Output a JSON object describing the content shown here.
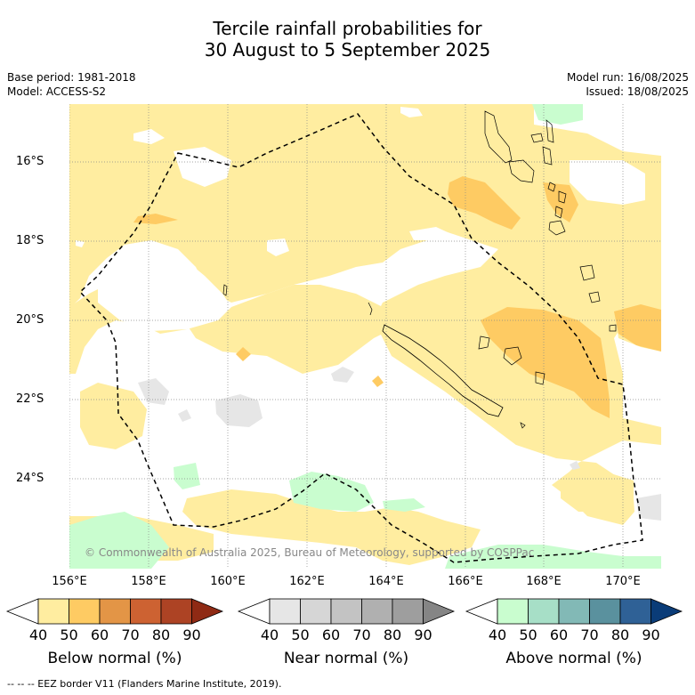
{
  "title_line1": "Tercile rainfall probabilities for",
  "title_line2": "30 August to 5 September 2025",
  "base_period": "Base period: 1981-2018",
  "model": "Model: ACCESS-S2",
  "model_run": "Model run: 16/08/2025",
  "issued": "Issued: 18/08/2025",
  "copyright": "© Commonwealth of Australia 2025, Bureau of Meteorology, supported by COSPPac",
  "footnote": "--  --  -- EEZ border V11 (Flanders Marine Institute, 2019).",
  "lat_labels": [
    "16°S",
    "18°S",
    "20°S",
    "22°S",
    "24°S"
  ],
  "lon_labels": [
    "156°E",
    "158°E",
    "160°E",
    "162°E",
    "164°E",
    "166°E",
    "168°E",
    "170°E"
  ],
  "colorbars": [
    {
      "label": "Below normal (%)",
      "ticks": [
        "40",
        "50",
        "60",
        "70",
        "80",
        "90"
      ],
      "colors": [
        "#ffeda0",
        "#fecb63",
        "#e39546",
        "#cd6232",
        "#ad4324",
        "#8f2a14"
      ]
    },
    {
      "label": "Near normal (%)",
      "ticks": [
        "40",
        "50",
        "60",
        "70",
        "80",
        "90"
      ],
      "colors": [
        "#e6e6e6",
        "#d6d6d6",
        "#c3c3c3",
        "#b0b0b0",
        "#9e9e9e",
        "#858585"
      ]
    },
    {
      "label": "Above normal (%)",
      "ticks": [
        "40",
        "50",
        "60",
        "70",
        "80",
        "90"
      ],
      "colors": [
        "#c9fdcf",
        "#a7dfc7",
        "#82b9b6",
        "#5a919e",
        "#2f6196",
        "#0a3c78"
      ]
    }
  ],
  "colors": {
    "below_50": "#ffeda0",
    "below_60": "#fecb63",
    "below_70": "#e39546",
    "near_50": "#e6e6e6",
    "above_50": "#c9fdcf",
    "grid": "#888888"
  }
}
